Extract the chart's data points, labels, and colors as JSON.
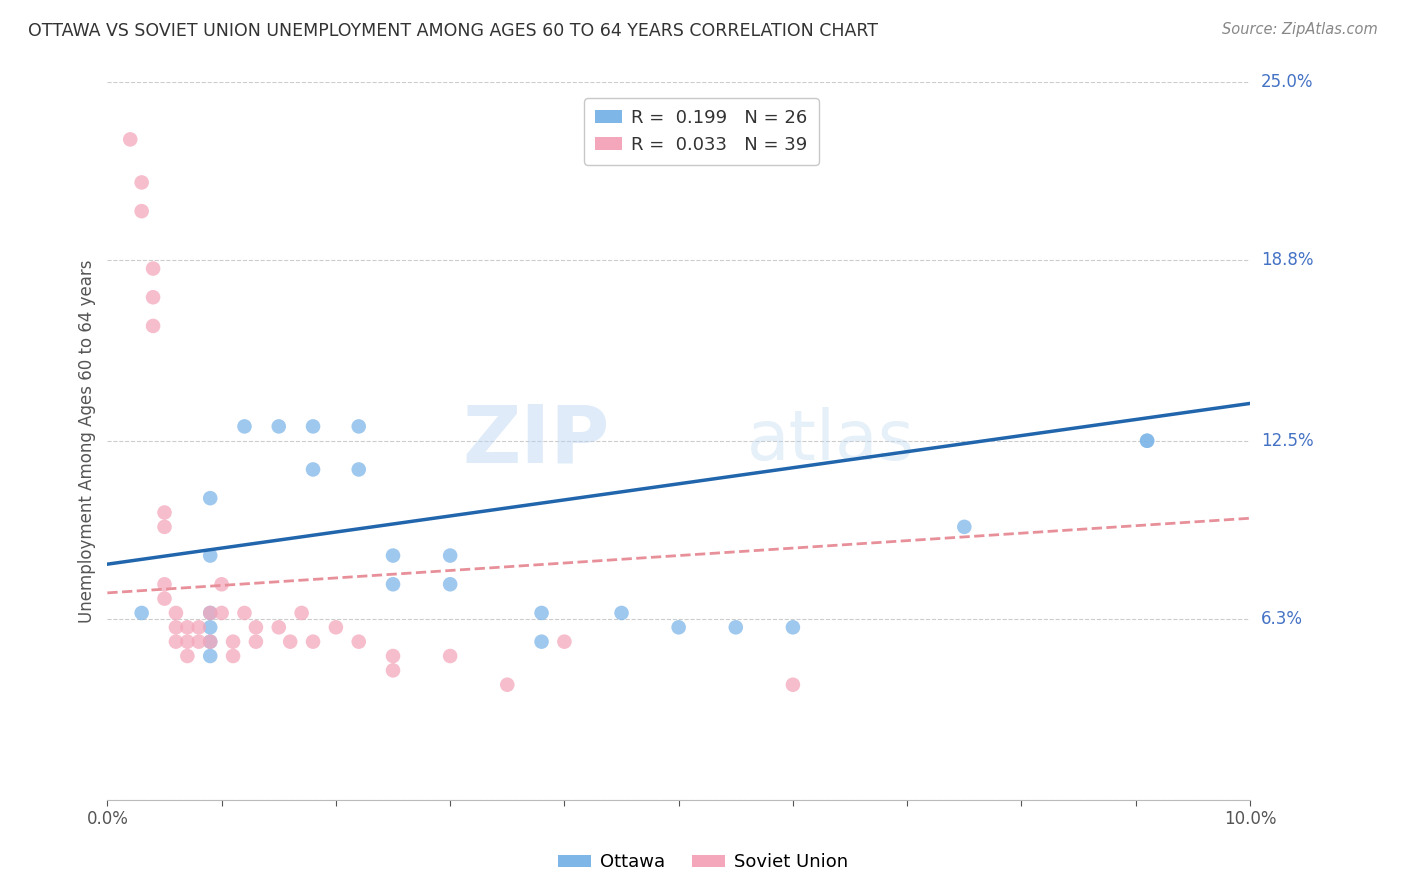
{
  "title": "OTTAWA VS SOVIET UNION UNEMPLOYMENT AMONG AGES 60 TO 64 YEARS CORRELATION CHART",
  "source": "Source: ZipAtlas.com",
  "ylabel": "Unemployment Among Ages 60 to 64 years",
  "xlim": [
    0.0,
    0.1
  ],
  "ylim": [
    0.0,
    0.25
  ],
  "xticks": [
    0.0,
    0.01,
    0.02,
    0.03,
    0.04,
    0.05,
    0.06,
    0.07,
    0.08,
    0.09,
    0.1
  ],
  "xticklabels": [
    "0.0%",
    "",
    "",
    "",
    "",
    "",
    "",
    "",
    "",
    "",
    "10.0%"
  ],
  "ytick_positions": [
    0.0,
    0.063,
    0.125,
    0.188,
    0.25
  ],
  "ytick_labels": [
    "",
    "6.3%",
    "12.5%",
    "18.8%",
    "25.0%"
  ],
  "ottawa_R": "0.199",
  "ottawa_N": "26",
  "soviet_R": "0.033",
  "soviet_N": "39",
  "ottawa_color": "#7EB6E8",
  "soviet_color": "#F4A7BB",
  "ottawa_line_color": "#2166AC",
  "soviet_line_color": "#E8909A",
  "background_color": "#FFFFFF",
  "watermark_line1": "ZIP",
  "watermark_line2": "atlas",
  "ottawa_points_x": [
    0.003,
    0.012,
    0.015,
    0.009,
    0.009,
    0.018,
    0.018,
    0.022,
    0.022,
    0.009,
    0.009,
    0.009,
    0.009,
    0.025,
    0.025,
    0.03,
    0.03,
    0.038,
    0.038,
    0.045,
    0.05,
    0.055,
    0.06,
    0.075,
    0.091,
    0.091
  ],
  "ottawa_points_y": [
    0.065,
    0.13,
    0.13,
    0.105,
    0.085,
    0.13,
    0.115,
    0.13,
    0.115,
    0.065,
    0.06,
    0.055,
    0.05,
    0.085,
    0.075,
    0.085,
    0.075,
    0.065,
    0.055,
    0.065,
    0.06,
    0.06,
    0.06,
    0.095,
    0.125,
    0.125
  ],
  "soviet_points_x": [
    0.002,
    0.003,
    0.003,
    0.004,
    0.004,
    0.004,
    0.005,
    0.005,
    0.005,
    0.005,
    0.006,
    0.006,
    0.006,
    0.007,
    0.007,
    0.007,
    0.008,
    0.008,
    0.009,
    0.009,
    0.01,
    0.01,
    0.011,
    0.011,
    0.012,
    0.013,
    0.013,
    0.015,
    0.016,
    0.017,
    0.018,
    0.02,
    0.022,
    0.025,
    0.025,
    0.03,
    0.035,
    0.04,
    0.06
  ],
  "soviet_points_y": [
    0.23,
    0.215,
    0.205,
    0.185,
    0.175,
    0.165,
    0.1,
    0.095,
    0.075,
    0.07,
    0.065,
    0.06,
    0.055,
    0.06,
    0.055,
    0.05,
    0.06,
    0.055,
    0.065,
    0.055,
    0.075,
    0.065,
    0.055,
    0.05,
    0.065,
    0.06,
    0.055,
    0.06,
    0.055,
    0.065,
    0.055,
    0.06,
    0.055,
    0.05,
    0.045,
    0.05,
    0.04,
    0.055,
    0.04
  ],
  "ottawa_line_x": [
    0.0,
    0.1
  ],
  "ottawa_line_y": [
    0.082,
    0.138
  ],
  "soviet_line_x": [
    0.0,
    0.1
  ],
  "soviet_line_y": [
    0.072,
    0.098
  ]
}
